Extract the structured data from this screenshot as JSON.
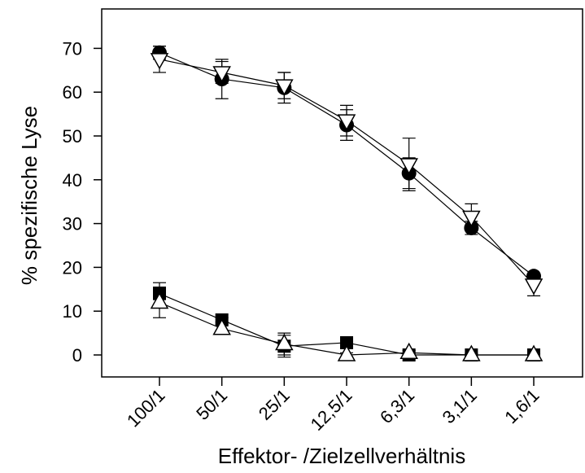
{
  "chart_data": {
    "type": "line",
    "title": "",
    "xlabel": "Effektor- /Zielzellverhältnis",
    "ylabel": "% spezifische Lyse",
    "categories": [
      "100/1",
      "50/1",
      "25/1",
      "12,5/1",
      "6,3/1",
      "3,1/1",
      "1,6/1"
    ],
    "ylim": [
      -5,
      78
    ],
    "yticks": [
      0,
      10,
      20,
      30,
      40,
      50,
      60,
      70
    ],
    "grid": false,
    "legend": "none",
    "series": [
      {
        "marker": "filled-circle",
        "values": [
          69,
          63,
          61,
          52.5,
          41.5,
          29,
          18
        ],
        "errors": [
          1.5,
          4.5,
          3.5,
          3.5,
          3.5,
          1.5,
          0.5
        ]
      },
      {
        "marker": "open-triangle-down",
        "values": [
          67.5,
          64.5,
          61.5,
          53.5,
          43.5,
          31.5,
          16
        ],
        "errors": [
          3,
          2.5,
          3,
          3.5,
          6,
          3,
          2.5
        ]
      },
      {
        "marker": "filled-square",
        "values": [
          14,
          8,
          2,
          2.8,
          0,
          0,
          0
        ],
        "errors": [
          2.5,
          0.5,
          2.5,
          0.5,
          0.3,
          0.3,
          0.3
        ]
      },
      {
        "marker": "open-triangle-up",
        "values": [
          12,
          6,
          2.5,
          0,
          0.5,
          0,
          0
        ],
        "errors": [
          3.5,
          1,
          2.5,
          0.5,
          0.5,
          0.3,
          0.3
        ]
      }
    ]
  }
}
